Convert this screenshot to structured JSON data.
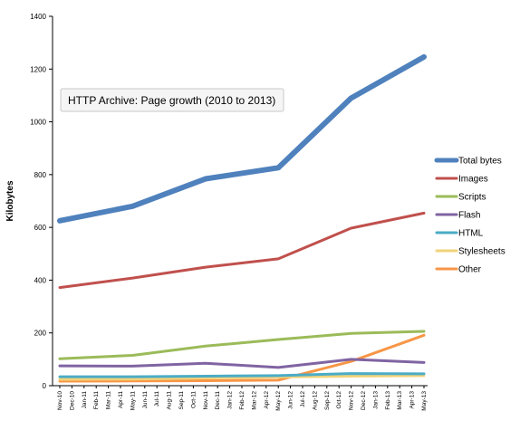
{
  "chart_data": {
    "type": "line",
    "title": "HTTP Archive: Page growth (2010 to 2013)",
    "xlabel": "",
    "ylabel": "Kilobytes",
    "ylim": [
      0,
      1400
    ],
    "yticks": [
      0,
      200,
      400,
      600,
      800,
      1000,
      1200,
      1400
    ],
    "grid": false,
    "legend_position": "right",
    "categories": [
      "Nov-10",
      "Dec-10",
      "Jan-11",
      "Feb-11",
      "Mar-11",
      "Apr-11",
      "May-11",
      "Jun-11",
      "Jul-11",
      "Aug-11",
      "Sep-11",
      "Oct-11",
      "Nov-11",
      "Dec-11",
      "Jan-12",
      "Feb-12",
      "Mar-12",
      "Apr-12",
      "May-12",
      "Jun-12",
      "Jul-12",
      "Aug-12",
      "Sep-12",
      "Oct-12",
      "Nov-12",
      "Dec-12",
      "Jan-13",
      "Feb-13",
      "Mar-13",
      "Apr-13",
      "May-13"
    ],
    "series": [
      {
        "name": "Total bytes",
        "color": "#4f81bd",
        "width": 6,
        "points": [
          [
            0,
            625
          ],
          [
            6,
            680
          ],
          [
            12,
            784
          ],
          [
            18,
            826
          ],
          [
            24,
            1090
          ],
          [
            30,
            1246
          ]
        ]
      },
      {
        "name": "Images",
        "color": "#c0504d",
        "width": 3,
        "points": [
          [
            0,
            372
          ],
          [
            6,
            408
          ],
          [
            12,
            449
          ],
          [
            18,
            481
          ],
          [
            24,
            597
          ],
          [
            30,
            654
          ]
        ]
      },
      {
        "name": "Scripts",
        "color": "#9bbb59",
        "width": 3,
        "points": [
          [
            0,
            102
          ],
          [
            6,
            115
          ],
          [
            12,
            150
          ],
          [
            18,
            175
          ],
          [
            24,
            198
          ],
          [
            30,
            206
          ]
        ]
      },
      {
        "name": "Flash",
        "color": "#8064a2",
        "width": 3,
        "points": [
          [
            0,
            75
          ],
          [
            6,
            74
          ],
          [
            12,
            85
          ],
          [
            18,
            69
          ],
          [
            24,
            100
          ],
          [
            30,
            88
          ]
        ]
      },
      {
        "name": "HTML",
        "color": "#4bacc6",
        "width": 3,
        "points": [
          [
            0,
            34
          ],
          [
            6,
            34
          ],
          [
            12,
            36
          ],
          [
            18,
            38
          ],
          [
            24,
            46
          ],
          [
            30,
            45
          ]
        ]
      },
      {
        "name": "Stylesheets",
        "color": "#f2d37a",
        "width": 3,
        "points": [
          [
            0,
            24
          ],
          [
            6,
            25
          ],
          [
            12,
            29
          ],
          [
            18,
            33
          ],
          [
            24,
            36
          ],
          [
            30,
            38
          ]
        ]
      },
      {
        "name": "Other",
        "color": "#f79646",
        "width": 3,
        "points": [
          [
            0,
            17
          ],
          [
            6,
            18
          ],
          [
            12,
            19
          ],
          [
            18,
            21
          ],
          [
            24,
            92
          ],
          [
            30,
            191
          ]
        ]
      }
    ]
  }
}
